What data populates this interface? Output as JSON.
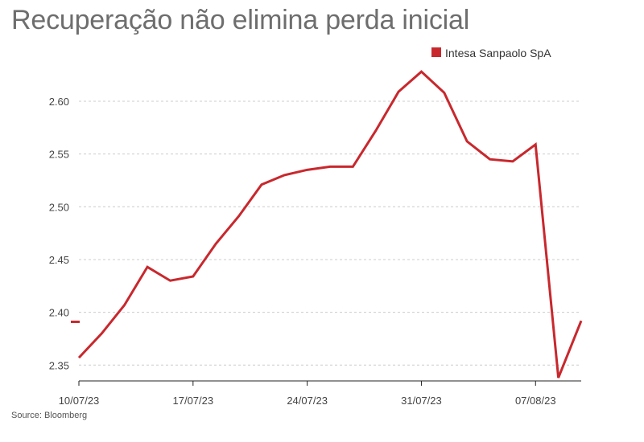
{
  "colors": {
    "series": "#c8282d",
    "grid": "#cccccc",
    "axis": "#222222"
  },
  "chart_data": {
    "type": "line",
    "title": "Recuperação não elimina perda inicial",
    "source": "Source: Bloomberg",
    "xlabel": "",
    "ylabel": "",
    "ylim": [
      2.335,
      2.635
    ],
    "y_ticks": [
      2.35,
      2.4,
      2.45,
      2.5,
      2.55,
      2.6
    ],
    "y_tick_labels": [
      "2.35",
      "2.40",
      "2.45",
      "2.50",
      "2.55",
      "2.60"
    ],
    "x_tick_labels": [
      "10/07/23",
      "17/07/23",
      "24/07/23",
      "31/07/23",
      "07/08/23"
    ],
    "x_tick_indices": [
      0,
      5,
      10,
      15,
      20
    ],
    "grid": "horizontal dashed",
    "legend_position": "top-right",
    "reference_marker": {
      "value": 2.391,
      "description": "short tick at left axis"
    },
    "x": [
      "10/07/23",
      "11/07/23",
      "12/07/23",
      "13/07/23",
      "14/07/23",
      "17/07/23",
      "18/07/23",
      "19/07/23",
      "20/07/23",
      "21/07/23",
      "24/07/23",
      "25/07/23",
      "26/07/23",
      "27/07/23",
      "28/07/23",
      "31/07/23",
      "01/08/23",
      "02/08/23",
      "03/08/23",
      "04/08/23",
      "07/08/23",
      "08/08/23",
      "09/08/23"
    ],
    "series": [
      {
        "name": "Intesa Sanpaolo SpA",
        "values": [
          2.357,
          2.38,
          2.407,
          2.443,
          2.43,
          2.434,
          2.465,
          2.491,
          2.521,
          2.53,
          2.535,
          2.538,
          2.538,
          2.572,
          2.609,
          2.628,
          2.608,
          2.562,
          2.545,
          2.543,
          2.559,
          2.338,
          2.392
        ],
        "x_positions": [
          0,
          1,
          2,
          3,
          4,
          5,
          6,
          7,
          8,
          9,
          10,
          11,
          12,
          13,
          14,
          15,
          16,
          17,
          18,
          19,
          20,
          21,
          22
        ]
      }
    ]
  }
}
